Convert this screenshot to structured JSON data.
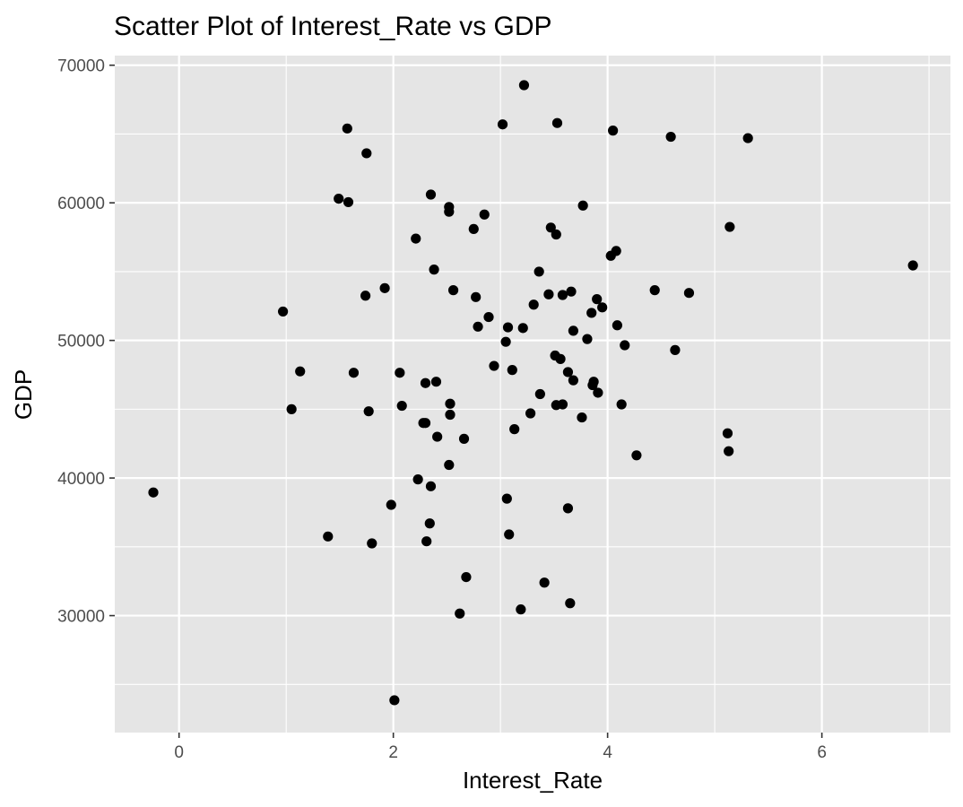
{
  "chart_data": {
    "type": "scatter",
    "title": "Scatter Plot of Interest_Rate vs GDP",
    "xlabel": "Interest_Rate",
    "ylabel": "GDP",
    "xlim": [
      -0.6,
      7.2
    ],
    "ylim": [
      21500,
      70700
    ],
    "x_ticks": [
      0,
      2,
      4,
      6
    ],
    "x_tick_labels": [
      "0",
      "2",
      "4",
      "6"
    ],
    "y_ticks": [
      30000,
      40000,
      50000,
      60000,
      70000
    ],
    "y_tick_labels": [
      "30000",
      "40000",
      "50000",
      "60000",
      "70000"
    ],
    "grid": true,
    "legend": "none",
    "colors": {
      "panel": "#e5e5e5",
      "grid": "#ffffff",
      "point": "#000000",
      "tick": "#333333"
    },
    "points": [
      [
        -0.24,
        38950
      ],
      [
        0.97,
        52100
      ],
      [
        1.05,
        45000
      ],
      [
        1.13,
        47750
      ],
      [
        1.39,
        35750
      ],
      [
        1.49,
        60300
      ],
      [
        1.57,
        65400
      ],
      [
        1.58,
        60050
      ],
      [
        1.63,
        47650
      ],
      [
        1.74,
        53250
      ],
      [
        1.75,
        63600
      ],
      [
        1.77,
        44850
      ],
      [
        1.8,
        35250
      ],
      [
        1.92,
        53800
      ],
      [
        1.98,
        38050
      ],
      [
        2.01,
        23850
      ],
      [
        2.06,
        47650
      ],
      [
        2.08,
        45250
      ],
      [
        2.21,
        57400
      ],
      [
        2.23,
        39900
      ],
      [
        2.28,
        44000
      ],
      [
        2.3,
        44000
      ],
      [
        2.3,
        46900
      ],
      [
        2.31,
        35400
      ],
      [
        2.34,
        36700
      ],
      [
        2.35,
        60600
      ],
      [
        2.35,
        39400
      ],
      [
        2.38,
        55150
      ],
      [
        2.4,
        47000
      ],
      [
        2.41,
        43000
      ],
      [
        2.52,
        59700
      ],
      [
        2.52,
        59350
      ],
      [
        2.52,
        40950
      ],
      [
        2.53,
        45400
      ],
      [
        2.53,
        44600
      ],
      [
        2.56,
        53650
      ],
      [
        2.62,
        30150
      ],
      [
        2.66,
        42850
      ],
      [
        2.68,
        32800
      ],
      [
        2.75,
        58100
      ],
      [
        2.77,
        53150
      ],
      [
        2.79,
        51000
      ],
      [
        2.85,
        59150
      ],
      [
        2.89,
        51700
      ],
      [
        2.94,
        48150
      ],
      [
        3.02,
        65700
      ],
      [
        3.05,
        49900
      ],
      [
        3.06,
        38500
      ],
      [
        3.07,
        50950
      ],
      [
        3.08,
        35900
      ],
      [
        3.11,
        47850
      ],
      [
        3.13,
        43550
      ],
      [
        3.19,
        30450
      ],
      [
        3.21,
        50900
      ],
      [
        3.22,
        68550
      ],
      [
        3.28,
        44700
      ],
      [
        3.31,
        52600
      ],
      [
        3.36,
        55000
      ],
      [
        3.37,
        46100
      ],
      [
        3.41,
        32400
      ],
      [
        3.45,
        53350
      ],
      [
        3.47,
        58200
      ],
      [
        3.51,
        48900
      ],
      [
        3.52,
        57700
      ],
      [
        3.52,
        45300
      ],
      [
        3.53,
        65800
      ],
      [
        3.56,
        48650
      ],
      [
        3.58,
        45350
      ],
      [
        3.58,
        53300
      ],
      [
        3.63,
        47700
      ],
      [
        3.63,
        37800
      ],
      [
        3.65,
        30900
      ],
      [
        3.66,
        53550
      ],
      [
        3.68,
        47100
      ],
      [
        3.68,
        50700
      ],
      [
        3.76,
        44400
      ],
      [
        3.77,
        59800
      ],
      [
        3.81,
        50100
      ],
      [
        3.85,
        52000
      ],
      [
        3.86,
        46750
      ],
      [
        3.87,
        47000
      ],
      [
        3.9,
        53000
      ],
      [
        3.91,
        46200
      ],
      [
        3.95,
        52400
      ],
      [
        4.03,
        56150
      ],
      [
        4.05,
        65250
      ],
      [
        4.08,
        56500
      ],
      [
        4.09,
        51100
      ],
      [
        4.13,
        45350
      ],
      [
        4.16,
        49650
      ],
      [
        4.27,
        41650
      ],
      [
        4.44,
        53650
      ],
      [
        4.59,
        64800
      ],
      [
        4.63,
        49300
      ],
      [
        4.76,
        53450
      ],
      [
        5.12,
        43250
      ],
      [
        5.13,
        41950
      ],
      [
        5.14,
        58250
      ],
      [
        5.31,
        64700
      ],
      [
        6.85,
        55450
      ]
    ]
  }
}
